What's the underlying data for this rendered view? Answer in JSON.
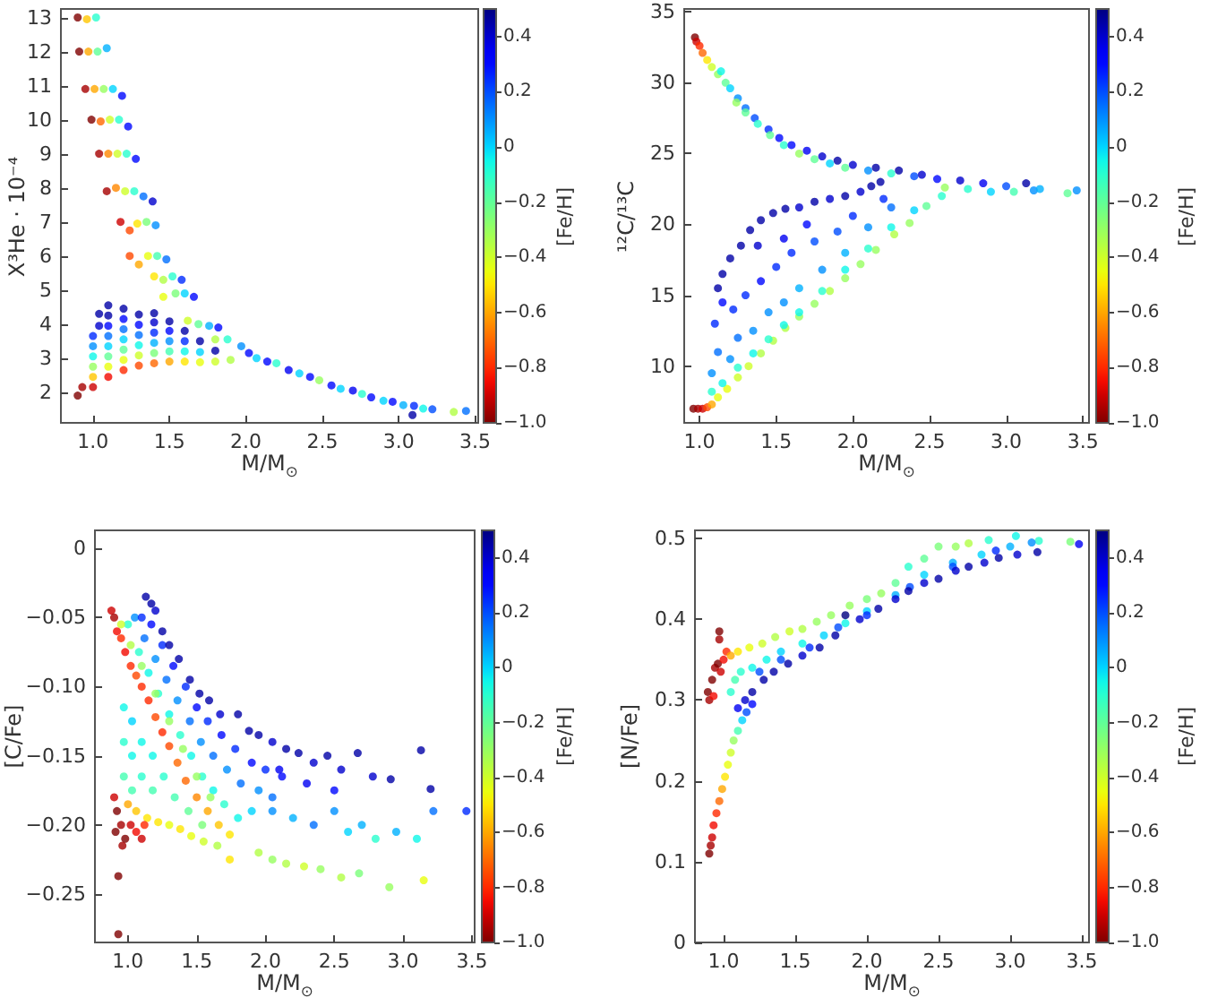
{
  "chart_data": [
    {
      "type": "scatter",
      "xlabel": "M/M$_{⊙}$",
      "ylabel": "X³He · 10⁻⁴",
      "clabel": "[Fe/H]",
      "marker": "circle",
      "grid": false,
      "xlim": [
        0.79,
        3.52
      ],
      "xticks": [
        {
          "value": 1,
          "label": "1.0"
        },
        1.5,
        {
          "value": 2,
          "label": "2.0"
        },
        2.5,
        {
          "value": 3,
          "label": "3.0"
        },
        3.5
      ],
      "ylim": [
        1.1,
        13.25
      ],
      "yticks": [
        2,
        3,
        4,
        5,
        6,
        7,
        8,
        9,
        10,
        11,
        12,
        13
      ],
      "clim": [
        -1,
        0.5
      ],
      "cticks": [
        {
          "value": -1,
          "label": "−1.0"
        },
        {
          "value": -0.8,
          "label": "−0.8"
        },
        {
          "value": -0.6,
          "label": "−0.6"
        },
        {
          "value": -0.4,
          "label": "−0.4"
        },
        {
          "value": -0.2,
          "label": "−0.2"
        },
        0,
        0.2,
        0.4
      ],
      "x": [
        0.9,
        0.93,
        1.0,
        1.0,
        1.0,
        1.0,
        1.0,
        1.0,
        1.04,
        1.04,
        1.1,
        1.1,
        1.1,
        1.1,
        1.1,
        1.1,
        1.1,
        1.1,
        1.2,
        1.2,
        1.2,
        1.2,
        1.2,
        1.2,
        1.2,
        1.3,
        1.3,
        1.3,
        1.3,
        1.3,
        1.3,
        1.4,
        1.4,
        1.4,
        1.4,
        1.4,
        1.4,
        1.5,
        1.5,
        1.5,
        1.5,
        1.5,
        1.6,
        1.6,
        1.6,
        1.6,
        1.7,
        1.7,
        1.7,
        1.8,
        1.8,
        1.9,
        0.9,
        0.96,
        1.02,
        0.91,
        0.97,
        1.03,
        1.09,
        0.95,
        1.01,
        1.07,
        1.13,
        1.19,
        0.99,
        1.05,
        1.11,
        1.17,
        1.23,
        1.04,
        1.1,
        1.16,
        1.22,
        1.28,
        1.09,
        1.15,
        1.21,
        1.27,
        1.33,
        1.39,
        1.18,
        1.24,
        1.29,
        1.35,
        1.41,
        1.24,
        1.3,
        1.36,
        1.42,
        1.48,
        1.4,
        1.46,
        1.52,
        1.58,
        1.46,
        1.54,
        1.6,
        1.66,
        1.62,
        1.69,
        1.76,
        1.82,
        1.8,
        1.88,
        1.97,
        2.02,
        2.07,
        2.14,
        2.2,
        2.28,
        2.35,
        2.42,
        2.48,
        2.56,
        2.62,
        2.7,
        2.76,
        2.82,
        2.9,
        2.96,
        3.03,
        3.09,
        3.1,
        3.16,
        3.22,
        3.36,
        3.44
      ],
      "values": [
        1.9,
        2.15,
        2.15,
        2.45,
        2.75,
        3.05,
        3.35,
        3.65,
        3.95,
        4.3,
        2.45,
        2.75,
        3.05,
        3.35,
        3.65,
        3.95,
        4.25,
        4.55,
        2.65,
        2.95,
        3.25,
        3.55,
        3.85,
        4.15,
        4.45,
        2.78,
        3.08,
        3.38,
        3.68,
        3.98,
        4.28,
        2.85,
        3.15,
        3.45,
        3.75,
        4.05,
        4.32,
        2.9,
        3.2,
        3.5,
        3.8,
        4.08,
        2.9,
        3.2,
        3.5,
        3.8,
        2.88,
        3.18,
        3.5,
        2.9,
        3.22,
        2.95,
        13.0,
        12.95,
        13.0,
        12.0,
        12.0,
        12.0,
        12.1,
        10.9,
        10.9,
        10.9,
        10.9,
        10.7,
        10.0,
        9.95,
        10.0,
        10.0,
        9.8,
        9.0,
        9.0,
        9.0,
        9.0,
        8.85,
        7.9,
        8.0,
        7.9,
        7.9,
        7.75,
        7.6,
        7.0,
        6.75,
        6.95,
        7.0,
        6.9,
        6.0,
        5.75,
        6.0,
        6.0,
        5.9,
        5.4,
        5.3,
        5.4,
        5.3,
        4.8,
        4.9,
        4.9,
        4.8,
        4.1,
        4.0,
        3.95,
        3.9,
        3.55,
        3.55,
        3.35,
        3.15,
        3.0,
        2.9,
        2.85,
        2.65,
        2.55,
        2.45,
        2.35,
        2.2,
        2.1,
        2.05,
        1.95,
        1.85,
        1.75,
        1.72,
        1.62,
        1.33,
        1.6,
        1.52,
        1.5,
        1.42,
        1.45
      ],
      "cvalues": [
        -1.0,
        -0.95,
        -0.9,
        -0.55,
        -0.3,
        -0.05,
        0.1,
        0.25,
        0.4,
        0.45,
        -0.85,
        -0.45,
        -0.2,
        0.0,
        0.15,
        0.3,
        0.45,
        0.45,
        -0.8,
        -0.45,
        -0.2,
        0.0,
        0.15,
        0.3,
        0.45,
        -0.75,
        -0.4,
        -0.05,
        0.15,
        0.3,
        0.45,
        -0.7,
        -0.25,
        0.05,
        0.25,
        0.4,
        0.45,
        -0.6,
        -0.15,
        0.1,
        0.3,
        0.45,
        -0.5,
        -0.05,
        0.25,
        0.45,
        -0.45,
        0.0,
        0.45,
        -0.4,
        0.45,
        -0.35,
        -1.0,
        -0.55,
        -0.1,
        -1.0,
        -0.6,
        -0.2,
        0.05,
        -0.95,
        -0.6,
        -0.3,
        0.0,
        0.3,
        -1.0,
        -0.7,
        -0.4,
        -0.1,
        0.3,
        -0.95,
        -0.65,
        -0.4,
        -0.1,
        0.3,
        -0.95,
        -0.65,
        -0.4,
        -0.1,
        0.15,
        0.4,
        -0.9,
        -0.75,
        -0.5,
        -0.25,
        0.1,
        -0.75,
        -0.6,
        -0.45,
        -0.15,
        0.15,
        -0.5,
        -0.35,
        -0.1,
        0.25,
        -0.45,
        -0.25,
        0.0,
        0.3,
        -0.4,
        -0.2,
        0.05,
        0.3,
        -0.35,
        -0.1,
        0.1,
        0.3,
        0.0,
        0.3,
        -0.1,
        0.35,
        0.0,
        0.3,
        -0.3,
        0.3,
        0.0,
        0.35,
        -0.1,
        0.3,
        0.0,
        0.3,
        0.05,
        0.45,
        0.25,
        -0.05,
        0.2,
        -0.35,
        0.15
      ]
    },
    {
      "type": "scatter",
      "xlabel": "M/M$_{⊙}$",
      "ylabel": "¹²C/¹³C",
      "clabel": "[Fe/H]",
      "marker": "circle",
      "grid": false,
      "xlim": [
        0.9,
        3.54
      ],
      "xticks": [
        {
          "value": 1,
          "label": "1.0"
        },
        1.5,
        {
          "value": 2,
          "label": "2.0"
        },
        2.5,
        {
          "value": 3,
          "label": "3.0"
        },
        3.5
      ],
      "ylim": [
        6,
        35.2
      ],
      "yticks": [
        10,
        15,
        20,
        25,
        30,
        35
      ],
      "clim": [
        -1,
        0.5
      ],
      "cticks": [
        {
          "value": -1,
          "label": "−1.0"
        },
        {
          "value": -0.8,
          "label": "−0.8"
        },
        {
          "value": -0.6,
          "label": "−0.6"
        },
        {
          "value": -0.4,
          "label": "−0.4"
        },
        {
          "value": -0.2,
          "label": "−0.2"
        },
        0,
        0.2,
        0.4
      ],
      "x": [
        0.97,
        0.98,
        1.0,
        1.02,
        1.05,
        1.08,
        1.12,
        1.14,
        1.17,
        1.2,
        1.25,
        1.24,
        1.3,
        1.3,
        1.36,
        1.38,
        1.45,
        1.46,
        1.52,
        1.55,
        1.6,
        1.65,
        1.7,
        1.75,
        1.8,
        1.85,
        1.9,
        1.95,
        2.0,
        2.1,
        2.15,
        2.25,
        2.3,
        2.4,
        2.45,
        2.55,
        2.6,
        2.7,
        2.75,
        2.85,
        2.9,
        3.0,
        3.05,
        3.13,
        3.18,
        3.22,
        3.4,
        3.46,
        0.96,
        0.99,
        1.02,
        1.05,
        1.08,
        1.12,
        1.18,
        1.25,
        1.32,
        1.4,
        1.48,
        1.56,
        1.65,
        1.75,
        1.85,
        1.95,
        2.05,
        2.15,
        2.27,
        2.37,
        2.48,
        2.58,
        1.08,
        1.15,
        1.25,
        1.35,
        1.45,
        1.55,
        1.65,
        1.8,
        1.95,
        2.1,
        2.25,
        2.4,
        1.08,
        1.12,
        1.2,
        1.25,
        1.35,
        1.45,
        1.55,
        1.65,
        1.8,
        1.95,
        2.1,
        2.25,
        1.1,
        1.15,
        1.22,
        1.3,
        1.4,
        1.5,
        1.6,
        1.75,
        1.9,
        2.0,
        2.2,
        1.12,
        1.15,
        1.2,
        1.27,
        1.33,
        1.4,
        1.48,
        1.56,
        1.65,
        1.75,
        1.85,
        1.95,
        2.05,
        2.12,
        2.18,
        1.38,
        1.55,
        1.7
      ],
      "values": [
        33.2,
        32.9,
        32.6,
        32.1,
        31.6,
        31.1,
        30.6,
        30.8,
        30.0,
        29.6,
        28.9,
        28.6,
        28.2,
        27.9,
        27.5,
        27.1,
        26.7,
        26.3,
        26.1,
        25.6,
        25.6,
        25.0,
        25.2,
        24.6,
        24.8,
        24.3,
        24.5,
        24.0,
        24.2,
        23.8,
        24.0,
        23.6,
        23.8,
        23.4,
        23.5,
        23.2,
        22.6,
        23.1,
        22.5,
        22.9,
        22.3,
        22.7,
        22.3,
        22.9,
        22.4,
        22.5,
        22.2,
        22.4,
        7.0,
        7.0,
        7.0,
        7.1,
        7.3,
        7.8,
        8.4,
        9.2,
        10.0,
        10.9,
        11.8,
        12.7,
        13.5,
        14.4,
        15.3,
        16.2,
        17.2,
        18.2,
        19.3,
        20.1,
        21.3,
        22.0,
        8.2,
        8.8,
        9.9,
        10.9,
        11.9,
        12.9,
        13.8,
        15.3,
        16.8,
        18.3,
        19.8,
        21.0,
        9.5,
        11.0,
        10.5,
        12.0,
        12.5,
        13.8,
        14.5,
        15.5,
        16.8,
        18.0,
        19.8,
        21.2,
        13.0,
        14.5,
        14.0,
        15.0,
        16.0,
        17.0,
        18.0,
        18.8,
        19.5,
        20.6,
        21.8,
        15.5,
        16.5,
        17.6,
        18.5,
        19.6,
        20.3,
        20.8,
        21.1,
        21.2,
        21.6,
        21.8,
        22.0,
        22.3,
        22.7,
        23.0,
        18.5,
        19.0,
        20.0
      ],
      "cvalues": [
        -1.0,
        -0.9,
        -0.8,
        -0.7,
        -0.5,
        -0.4,
        -0.3,
        -0.05,
        -0.2,
        0.0,
        0.1,
        -0.3,
        0.15,
        -0.2,
        0.2,
        -0.1,
        0.25,
        -0.2,
        0.3,
        -0.1,
        0.3,
        -0.3,
        0.35,
        -0.2,
        0.4,
        0.0,
        0.45,
        -0.2,
        0.4,
        0.1,
        0.45,
        -0.1,
        0.45,
        0.2,
        0.4,
        0.3,
        -0.3,
        0.4,
        -0.1,
        0.35,
        0.0,
        0.2,
        -0.15,
        0.45,
        0.1,
        0.05,
        -0.2,
        0.1,
        -1.0,
        -0.95,
        -0.9,
        -0.75,
        -0.6,
        -0.45,
        -0.45,
        -0.4,
        -0.4,
        -0.35,
        -0.35,
        -0.35,
        -0.3,
        -0.3,
        -0.35,
        -0.3,
        -0.3,
        -0.3,
        -0.35,
        -0.3,
        -0.2,
        -0.1,
        -0.1,
        -0.05,
        -0.1,
        -0.05,
        -0.1,
        -0.05,
        -0.05,
        -0.1,
        -0.05,
        -0.1,
        -0.05,
        0.0,
        0.1,
        0.15,
        0.1,
        0.15,
        0.1,
        0.1,
        0.1,
        0.05,
        0.1,
        0.05,
        0.1,
        0.15,
        0.25,
        0.3,
        0.25,
        0.25,
        0.3,
        0.25,
        0.25,
        0.2,
        0.2,
        0.25,
        0.25,
        0.45,
        0.45,
        0.45,
        0.45,
        0.45,
        0.45,
        0.45,
        0.45,
        0.4,
        0.45,
        0.4,
        0.45,
        0.4,
        0.45,
        0.45,
        0.4,
        0.35,
        0.3
      ]
    },
    {
      "type": "scatter",
      "xlabel": "M/M$_{⊙}$",
      "ylabel": "[C/Fe]",
      "clabel": "[Fe/H]",
      "marker": "circle",
      "grid": false,
      "xlim": [
        0.76,
        3.52
      ],
      "xticks": [
        {
          "value": 1,
          "label": "1.0"
        },
        1.5,
        {
          "value": 2,
          "label": "2.0"
        },
        2.5,
        {
          "value": 3,
          "label": "3.0"
        },
        3.5
      ],
      "ylim": [
        -0.285,
        0.013
      ],
      "yticks": [
        {
          "value": -0.25,
          "label": "−0.25"
        },
        {
          "value": -0.2,
          "label": "−0.20"
        },
        {
          "value": -0.15,
          "label": "−0.15"
        },
        {
          "value": -0.1,
          "label": "−0.10"
        },
        {
          "value": -0.05,
          "label": "−0.05"
        },
        0
      ],
      "clim": [
        -1,
        0.5
      ],
      "cticks": [
        {
          "value": -1,
          "label": "−1.0"
        },
        {
          "value": -0.8,
          "label": "−0.8"
        },
        {
          "value": -0.6,
          "label": "−0.6"
        },
        {
          "value": -0.4,
          "label": "−0.4"
        },
        {
          "value": -0.2,
          "label": "−0.2"
        },
        0,
        0.2,
        0.4
      ],
      "x": [
        0.97,
        0.97,
        0.97,
        1.03,
        1.03,
        1.03,
        1.1,
        1.1,
        1.18,
        1.18,
        1.26,
        1.34,
        1.44,
        1.54,
        1.0,
        1.08,
        1.15,
        1.22,
        1.3,
        1.38,
        1.46,
        1.54,
        1.62,
        1.7,
        1.8,
        1.9,
        1.05,
        1.12,
        1.2,
        1.28,
        1.36,
        1.45,
        1.53,
        1.62,
        1.72,
        1.82,
        1.95,
        2.05,
        1.1,
        1.17,
        1.25,
        1.33,
        1.42,
        1.5,
        1.58,
        1.68,
        1.78,
        1.9,
        2.0,
        2.12,
        1.13,
        1.17,
        1.2,
        1.25,
        1.3,
        1.37,
        1.45,
        1.52,
        1.59,
        1.67,
        1.8,
        1.88,
        1.95,
        2.05,
        2.15,
        2.24,
        2.35,
        2.45,
        2.55,
        2.67,
        2.78,
        2.91,
        3.13,
        3.2,
        2.3,
        2.5,
        2.1,
        2.05,
        2.2,
        2.35,
        2.5,
        2.6,
        2.7,
        2.8,
        2.95,
        3.1,
        3.22,
        3.46,
        1.95,
        2.05,
        2.15,
        2.28,
        2.4,
        2.55,
        2.68,
        2.9,
        3.15,
        1.0,
        1.06,
        1.14,
        1.22,
        1.3,
        1.38,
        1.46,
        1.55,
        1.65,
        1.74,
        0.9,
        0.92,
        0.95,
        0.98,
        0.91,
        1.02,
        1.06,
        1.1,
        1.12,
        0.96,
        0.93,
        0.93,
        0.95,
        1.02,
        1.1,
        1.2,
        1.3,
        1.4,
        1.5,
        1.6,
        0.88,
        0.9,
        0.92,
        0.95,
        0.98,
        1.02,
        1.06,
        1.1,
        1.15,
        1.2,
        1.25,
        1.3,
        1.36,
        1.42,
        1.5,
        1.58,
        1.66,
        1.74
      ],
      "values": [
        -0.115,
        -0.14,
        -0.165,
        -0.125,
        -0.15,
        -0.175,
        -0.14,
        -0.165,
        -0.15,
        -0.175,
        -0.165,
        -0.18,
        -0.19,
        -0.2,
        -0.055,
        -0.075,
        -0.09,
        -0.105,
        -0.12,
        -0.135,
        -0.15,
        -0.165,
        -0.175,
        -0.185,
        -0.195,
        -0.19,
        -0.05,
        -0.065,
        -0.08,
        -0.095,
        -0.11,
        -0.125,
        -0.14,
        -0.15,
        -0.16,
        -0.17,
        -0.175,
        -0.18,
        -0.05,
        -0.055,
        -0.07,
        -0.085,
        -0.1,
        -0.115,
        -0.125,
        -0.135,
        -0.145,
        -0.155,
        -0.16,
        -0.165,
        -0.035,
        -0.04,
        -0.045,
        -0.06,
        -0.07,
        -0.08,
        -0.095,
        -0.105,
        -0.11,
        -0.12,
        -0.12,
        -0.132,
        -0.135,
        -0.14,
        -0.145,
        -0.148,
        -0.155,
        -0.15,
        -0.16,
        -0.148,
        -0.165,
        -0.167,
        -0.146,
        -0.174,
        -0.17,
        -0.175,
        -0.16,
        -0.19,
        -0.195,
        -0.2,
        -0.19,
        -0.205,
        -0.2,
        -0.21,
        -0.205,
        -0.21,
        -0.19,
        -0.19,
        -0.22,
        -0.225,
        -0.228,
        -0.23,
        -0.232,
        -0.238,
        -0.235,
        -0.245,
        -0.24,
        -0.185,
        -0.19,
        -0.195,
        -0.198,
        -0.2,
        -0.203,
        -0.208,
        -0.212,
        -0.215,
        -0.225,
        -0.18,
        -0.19,
        -0.2,
        -0.21,
        -0.205,
        -0.2,
        -0.205,
        -0.21,
        -0.2,
        -0.215,
        -0.237,
        -0.279,
        -0.055,
        -0.07,
        -0.085,
        -0.105,
        -0.125,
        -0.145,
        -0.165,
        -0.18,
        -0.045,
        -0.05,
        -0.06,
        -0.065,
        -0.075,
        -0.085,
        -0.092,
        -0.1,
        -0.11,
        -0.122,
        -0.133,
        -0.143,
        -0.155,
        -0.168,
        -0.18,
        -0.19,
        -0.2,
        -0.207
      ],
      "cvalues": [
        -0.05,
        -0.1,
        -0.15,
        0.0,
        -0.05,
        -0.15,
        -0.05,
        -0.1,
        -0.05,
        -0.15,
        -0.1,
        -0.15,
        -0.2,
        -0.25,
        -0.1,
        -0.1,
        -0.05,
        -0.1,
        -0.05,
        -0.1,
        -0.05,
        -0.1,
        -0.05,
        -0.1,
        -0.05,
        0.0,
        0.1,
        0.15,
        0.1,
        0.15,
        0.1,
        0.15,
        0.1,
        0.15,
        0.1,
        0.15,
        0.1,
        0.15,
        0.25,
        0.3,
        0.25,
        0.3,
        0.25,
        0.3,
        0.25,
        0.3,
        0.25,
        0.3,
        0.25,
        0.3,
        0.45,
        0.45,
        0.4,
        0.45,
        0.45,
        0.45,
        0.45,
        0.45,
        0.45,
        0.4,
        0.45,
        0.45,
        0.45,
        0.4,
        0.45,
        0.45,
        0.4,
        0.45,
        0.4,
        0.45,
        0.4,
        0.45,
        0.45,
        0.45,
        0.35,
        0.3,
        0.35,
        0.1,
        0.05,
        0.15,
        0.1,
        0.0,
        0.05,
        -0.1,
        0.05,
        -0.05,
        0.15,
        0.25,
        -0.35,
        -0.3,
        -0.35,
        -0.4,
        -0.3,
        -0.35,
        -0.25,
        -0.3,
        -0.45,
        -0.6,
        -0.55,
        -0.5,
        -0.5,
        -0.45,
        -0.5,
        -0.45,
        -0.4,
        -0.35,
        -0.5,
        -0.9,
        -1.0,
        -0.95,
        -1.0,
        -1.0,
        -0.9,
        -0.85,
        -0.9,
        -0.8,
        -0.95,
        -1.0,
        -1.0,
        -0.4,
        -0.35,
        -0.3,
        -0.3,
        -0.3,
        -0.3,
        -0.3,
        -0.3,
        -0.9,
        -0.95,
        -0.85,
        -0.8,
        -0.85,
        -0.8,
        -0.75,
        -0.8,
        -0.8,
        -0.75,
        -0.8,
        -0.75,
        -0.7,
        -0.7,
        -0.65,
        -0.6,
        -0.55,
        -0.5
      ]
    },
    {
      "type": "scatter",
      "xlabel": "M/M$_{⊙}$",
      "ylabel": "[N/Fe]",
      "clabel": "[Fe/H]",
      "marker": "circle",
      "grid": false,
      "xlim": [
        0.8,
        3.55
      ],
      "xticks": [
        {
          "value": 1,
          "label": "1.0"
        },
        1.5,
        {
          "value": 2,
          "label": "2.0"
        },
        2.5,
        {
          "value": 3,
          "label": "3.0"
        },
        3.5
      ],
      "ylim": [
        0,
        0.51
      ],
      "yticks": [
        0,
        0.1,
        0.2,
        0.3,
        0.4,
        0.5
      ],
      "clim": [
        -1,
        0.5
      ],
      "cticks": [
        {
          "value": -1,
          "label": "−1.0"
        },
        {
          "value": -0.8,
          "label": "−0.8"
        },
        {
          "value": -0.6,
          "label": "−0.6"
        },
        {
          "value": -0.4,
          "label": "−0.4"
        },
        {
          "value": -0.2,
          "label": "−0.2"
        },
        0,
        0.2,
        0.4
      ],
      "x": [
        0.9,
        0.91,
        0.92,
        0.93,
        0.95,
        0.97,
        0.99,
        1.01,
        1.03,
        1.05,
        1.07,
        1.1,
        1.13,
        1.16,
        1.2,
        0.89,
        0.9,
        0.92,
        0.94,
        0.96,
        0.98,
        1.0,
        0.93,
        0.97,
        0.97,
        1.02,
        1.05,
        1.1,
        1.18,
        1.27,
        1.36,
        1.46,
        1.55,
        1.65,
        1.75,
        1.88,
        2.0,
        2.1,
        2.2,
        2.29,
        2.4,
        2.5,
        2.62,
        2.71,
        2.85,
        3.04,
        3.2,
        3.42,
        3.48,
        1.05,
        1.08,
        1.12,
        1.2,
        1.3,
        1.4,
        1.55,
        1.7,
        1.85,
        2.0,
        2.2,
        2.4,
        2.6,
        2.8,
        3.0,
        3.15,
        1.25,
        1.4,
        1.6,
        1.8,
        2.0,
        2.3,
        2.6,
        2.9,
        1.1,
        1.15,
        1.2,
        1.28,
        1.35,
        1.45,
        1.55,
        1.67,
        1.78,
        1.85,
        1.95,
        2.08,
        2.2,
        2.29,
        2.4,
        2.5,
        2.62,
        2.71,
        2.82,
        2.92,
        3.05,
        3.19
      ],
      "values": [
        0.11,
        0.12,
        0.13,
        0.145,
        0.16,
        0.175,
        0.19,
        0.205,
        0.22,
        0.235,
        0.25,
        0.262,
        0.275,
        0.285,
        0.295,
        0.31,
        0.3,
        0.325,
        0.34,
        0.345,
        0.335,
        0.35,
        0.305,
        0.385,
        0.375,
        0.36,
        0.355,
        0.36,
        0.365,
        0.37,
        0.378,
        0.385,
        0.388,
        0.397,
        0.405,
        0.417,
        0.425,
        0.432,
        0.445,
        0.465,
        0.475,
        0.49,
        0.49,
        0.494,
        0.498,
        0.503,
        0.497,
        0.496,
        0.493,
        0.31,
        0.325,
        0.335,
        0.34,
        0.35,
        0.36,
        0.37,
        0.38,
        0.395,
        0.41,
        0.43,
        0.455,
        0.47,
        0.48,
        0.49,
        0.495,
        0.335,
        0.35,
        0.365,
        0.39,
        0.405,
        0.44,
        0.465,
        0.485,
        0.29,
        0.3,
        0.31,
        0.325,
        0.335,
        0.345,
        0.355,
        0.365,
        0.38,
        0.405,
        0.4,
        0.413,
        0.425,
        0.435,
        0.445,
        0.45,
        0.46,
        0.465,
        0.47,
        0.476,
        0.48,
        0.483
      ],
      "cvalues": [
        -1.0,
        -0.95,
        -0.9,
        -0.85,
        -0.8,
        -0.7,
        -0.6,
        -0.5,
        -0.45,
        -0.4,
        -0.3,
        -0.15,
        0.0,
        0.2,
        0.3,
        -1.0,
        -0.95,
        -1.0,
        -0.95,
        -1.0,
        -0.9,
        -0.85,
        -0.85,
        -1.0,
        -0.95,
        -0.8,
        -0.6,
        -0.5,
        -0.45,
        -0.4,
        -0.35,
        -0.4,
        -0.35,
        -0.3,
        -0.3,
        -0.3,
        -0.25,
        -0.3,
        -0.2,
        -0.1,
        -0.2,
        -0.25,
        -0.3,
        -0.35,
        -0.1,
        -0.05,
        -0.1,
        -0.25,
        0.35,
        -0.1,
        -0.15,
        -0.1,
        -0.05,
        -0.05,
        0.0,
        -0.05,
        0.0,
        -0.05,
        0.0,
        0.05,
        0.0,
        0.05,
        0.0,
        0.05,
        0.1,
        0.2,
        0.2,
        0.25,
        0.2,
        0.25,
        0.2,
        0.2,
        0.25,
        0.35,
        0.4,
        0.45,
        0.45,
        0.45,
        0.45,
        0.4,
        0.45,
        0.45,
        0.5,
        0.4,
        0.45,
        0.4,
        0.45,
        0.4,
        0.45,
        0.4,
        0.45,
        0.4,
        0.45,
        0.4,
        0.45
      ]
    }
  ]
}
